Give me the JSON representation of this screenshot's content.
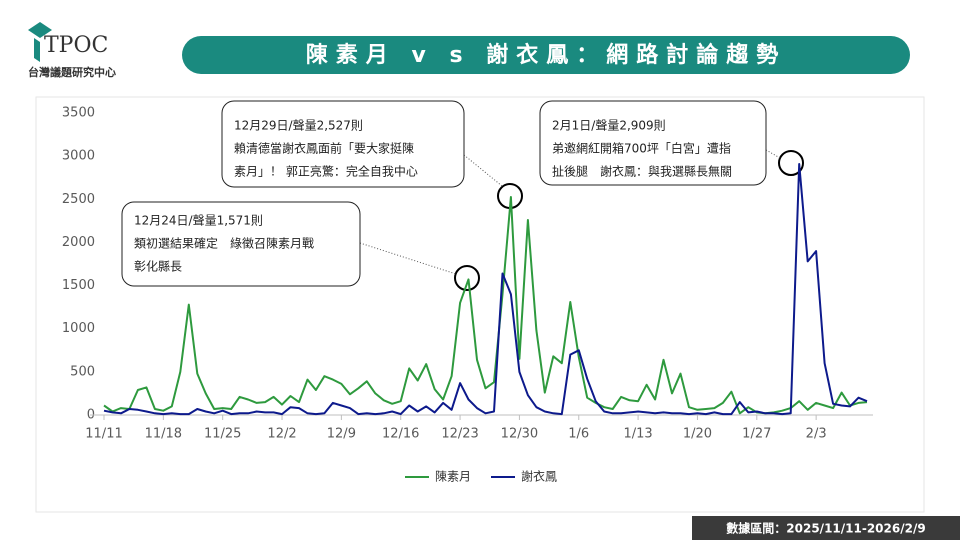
{
  "header": {
    "logo": "TPOC",
    "org": "台灣議題研究中心",
    "title": "陳素月 v s 謝衣鳳：網路討論趨勢"
  },
  "footer": "數據區間：2025/11/11-2026/2/9",
  "chart_data": {
    "type": "line",
    "categories": [
      "11/11",
      null,
      null,
      null,
      null,
      null,
      null,
      "11/18",
      null,
      null,
      null,
      null,
      null,
      null,
      "11/25",
      null,
      null,
      null,
      null,
      null,
      null,
      "12/2",
      null,
      null,
      null,
      null,
      null,
      null,
      "12/9",
      null,
      null,
      null,
      null,
      null,
      null,
      "12/16",
      null,
      null,
      null,
      null,
      null,
      null,
      "12/23",
      null,
      null,
      null,
      null,
      null,
      null,
      "12/30",
      null,
      null,
      null,
      null,
      null,
      null,
      "1/6",
      null,
      null,
      null,
      null,
      null,
      null,
      "1/13",
      null,
      null,
      null,
      null,
      null,
      null,
      "1/20",
      null,
      null,
      null,
      null,
      null,
      null,
      "1/27",
      null,
      null,
      null,
      null,
      null,
      null,
      "2/3",
      null,
      null,
      null,
      null,
      null,
      null
    ],
    "series": [
      {
        "name": "陳素月",
        "color": "#2e9a3e",
        "values": [
          110,
          40,
          80,
          70,
          290,
          320,
          70,
          50,
          100,
          500,
          1280,
          480,
          250,
          70,
          80,
          70,
          210,
          180,
          140,
          150,
          210,
          120,
          220,
          150,
          410,
          290,
          450,
          410,
          360,
          240,
          310,
          390,
          250,
          170,
          130,
          160,
          540,
          400,
          590,
          300,
          180,
          450,
          1300,
          1571,
          640,
          310,
          380,
          1400,
          2527,
          650,
          2260,
          980,
          260,
          680,
          600,
          1310,
          670,
          200,
          140,
          90,
          70,
          210,
          170,
          160,
          350,
          180,
          640,
          250,
          480,
          90,
          60,
          70,
          80,
          140,
          270,
          20,
          90,
          30,
          20,
          30,
          50,
          80,
          160,
          60,
          140,
          110,
          80,
          260,
          110,
          140,
          150
        ]
      },
      {
        "name": "謝衣鳳",
        "color": "#0d1a8c",
        "values": [
          50,
          30,
          20,
          70,
          60,
          40,
          20,
          10,
          20,
          10,
          10,
          70,
          40,
          20,
          50,
          10,
          20,
          20,
          40,
          30,
          30,
          10,
          90,
          80,
          20,
          10,
          20,
          140,
          110,
          80,
          10,
          20,
          10,
          20,
          40,
          10,
          110,
          40,
          100,
          30,
          140,
          60,
          370,
          180,
          80,
          20,
          40,
          1640,
          1400,
          500,
          230,
          90,
          40,
          20,
          10,
          700,
          750,
          420,
          160,
          40,
          20,
          20,
          30,
          40,
          30,
          20,
          30,
          20,
          20,
          10,
          20,
          10,
          30,
          10,
          10,
          150,
          30,
          40,
          20,
          20,
          10,
          20,
          2909,
          1780,
          1900,
          600,
          130,
          110,
          100,
          200,
          160
        ]
      }
    ],
    "ylim": [
      0,
      3500
    ],
    "yticks": [
      0,
      500,
      1000,
      1500,
      2000,
      2500,
      3000,
      3500
    ],
    "annotations": [
      {
        "lines": [
          "12月24日/聲量1,571則",
          "類初選結果確定　綠徵召陳素月戰",
          "彰化縣長"
        ]
      },
      {
        "lines": [
          "12月29日/聲量2,527則",
          "賴清德當謝衣鳳面前「要大家挺陳",
          "素月」！ 郭正亮驚：完全自我中心"
        ]
      },
      {
        "lines": [
          "2月1日/聲量2,909則",
          "弟邀網紅開箱700坪「白宮」遭指",
          "扯後腿　謝衣鳳：與我選縣長無關"
        ]
      }
    ]
  }
}
